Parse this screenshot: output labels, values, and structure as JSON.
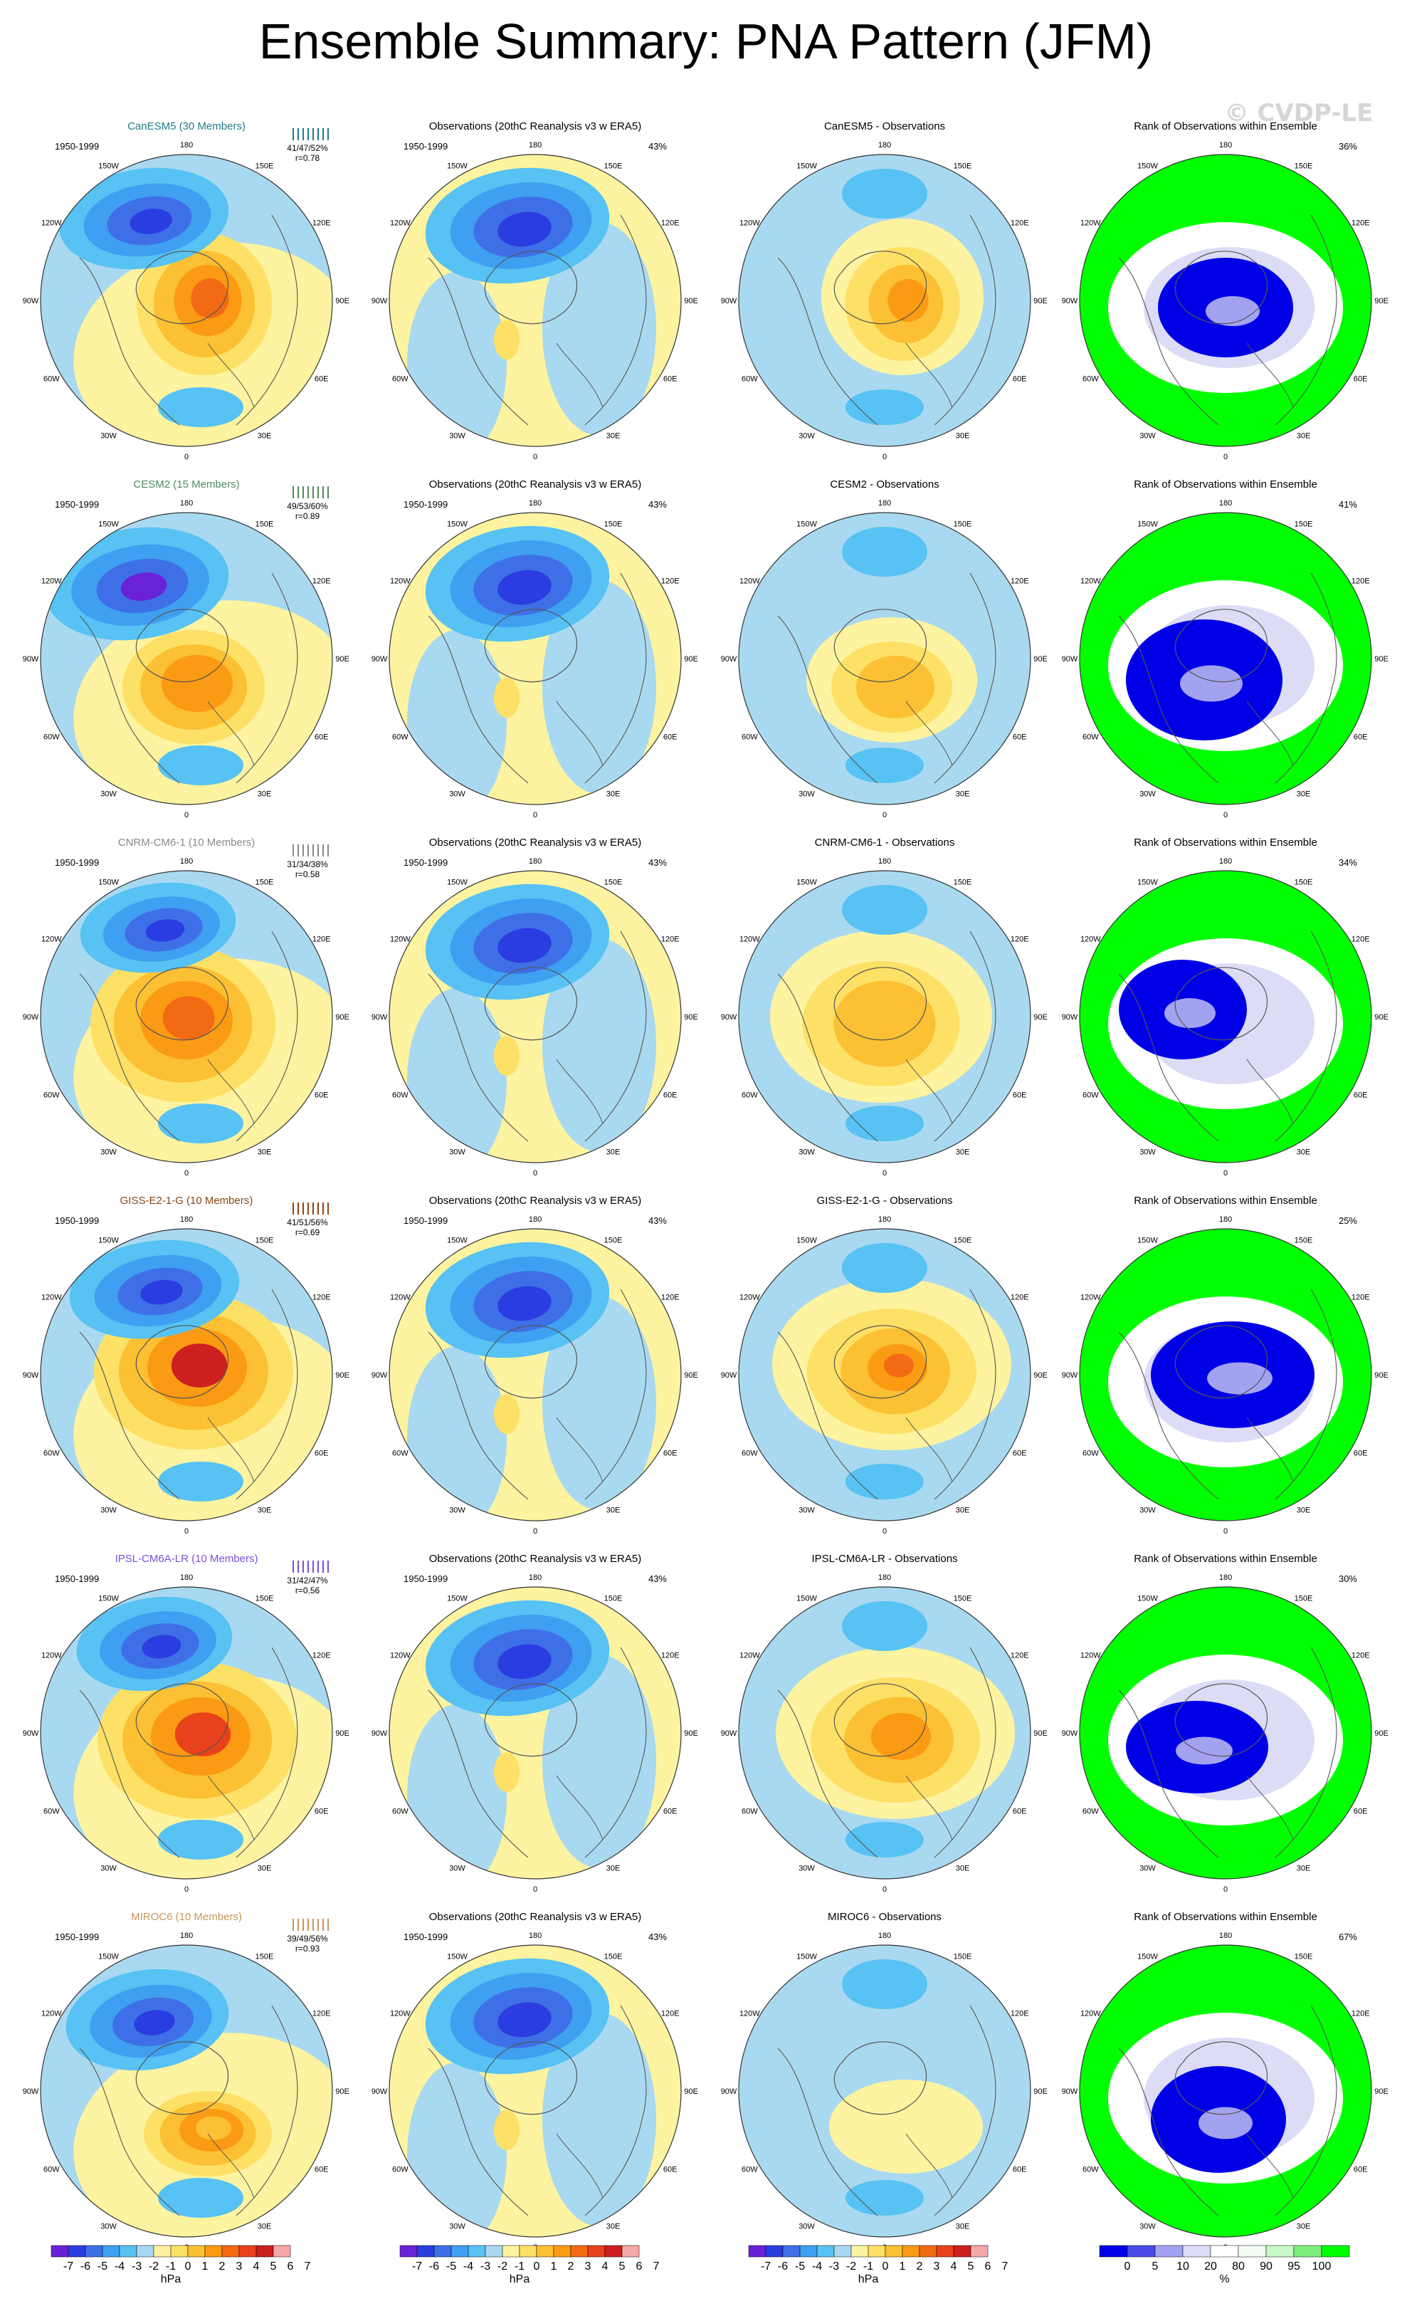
{
  "page": {
    "title": "Ensemble Summary: PNA Pattern (JFM)",
    "watermark": "© CVDP-LE"
  },
  "longitude_labels": [
    "180",
    "150E",
    "120E",
    "90E",
    "60E",
    "30E",
    "0",
    "30W",
    "60W",
    "90W",
    "120W",
    "150W"
  ],
  "colors": {
    "contour_levels": [
      "#6a22d6",
      "#2a3de0",
      "#3f6fe6",
      "#3f9ff0",
      "#57c2f3",
      "#a9d9f0",
      "#fdf3a0",
      "#fde066",
      "#fbc033",
      "#fb9a13",
      "#f36a14",
      "#e8421c",
      "#cc1f1f",
      "#f6a7a7"
    ],
    "rank_levels": [
      "#0000e6",
      "#4a4ae8",
      "#a2a2f0",
      "#dcdcf6",
      "#ffffff",
      "#f2fcf2",
      "#c8f7c8",
      "#7ded7d",
      "#00ff00"
    ],
    "map_border": "#333333"
  },
  "rows": [
    {
      "model": "CanESM5 (30 Members)",
      "model_color": "#1f7a8c",
      "period": "1950-1999",
      "stats": "41/47/52%",
      "r": "r=0.78",
      "obs_title": "Observations (20thC Reanalysis v3 w ERA5)",
      "obs_period": "1950-1999",
      "obs_pct": "43%",
      "diff_title": "CanESM5 - Observations",
      "rank_title": "Rank of Observations within Ensemble",
      "rank_pct": "36%"
    },
    {
      "model": "CESM2 (15 Members)",
      "model_color": "#4f8a5b",
      "period": "1950-1999",
      "stats": "49/53/60%",
      "r": "r=0.89",
      "obs_title": "Observations (20thC Reanalysis v3 w ERA5)",
      "obs_period": "1950-1999",
      "obs_pct": "43%",
      "diff_title": "CESM2 - Observations",
      "rank_title": "Rank of Observations within Ensemble",
      "rank_pct": "41%"
    },
    {
      "model": "CNRM-CM6-1 (10 Members)",
      "model_color": "#8a8a8a",
      "period": "1950-1999",
      "stats": "31/34/38%",
      "r": "r=0.58",
      "obs_title": "Observations (20thC Reanalysis v3 w ERA5)",
      "obs_period": "1950-1999",
      "obs_pct": "43%",
      "diff_title": "CNRM-CM6-1 - Observations",
      "rank_title": "Rank of Observations within Ensemble",
      "rank_pct": "34%"
    },
    {
      "model": "GISS-E2-1-G (10 Members)",
      "model_color": "#8b4513",
      "period": "1950-1999",
      "stats": "41/51/56%",
      "r": "r=0.69",
      "obs_title": "Observations (20thC Reanalysis v3 w ERA5)",
      "obs_period": "1950-1999",
      "obs_pct": "43%",
      "diff_title": "GISS-E2-1-G - Observations",
      "rank_title": "Rank of Observations within Ensemble",
      "rank_pct": "25%"
    },
    {
      "model": "IPSL-CM6A-LR (10 Members)",
      "model_color": "#7b4fd8",
      "period": "1950-1999",
      "stats": "31/42/47%",
      "r": "r=0.56",
      "obs_title": "Observations (20thC Reanalysis v3 w ERA5)",
      "obs_period": "1950-1999",
      "obs_pct": "43%",
      "diff_title": "IPSL-CM6A-LR - Observations",
      "rank_title": "Rank of Observations within Ensemble",
      "rank_pct": "30%"
    },
    {
      "model": "MIROC6 (10 Members)",
      "model_color": "#c8965a",
      "period": "1950-1999",
      "stats": "39/49/56%",
      "r": "r=0.93",
      "obs_title": "Observations (20thC Reanalysis v3 w ERA5)",
      "obs_period": "1950-1999",
      "obs_pct": "43%",
      "diff_title": "MIROC6 - Observations",
      "rank_title": "Rank of Observations within Ensemble",
      "rank_pct": "67%"
    }
  ],
  "legends": {
    "hpa": {
      "labels": [
        "-7",
        "-6",
        "-5",
        "-4",
        "-3",
        "-2",
        "-1",
        "0",
        "1",
        "2",
        "3",
        "4",
        "5",
        "6",
        "7"
      ],
      "units": "hPa"
    },
    "rank": {
      "labels": [
        "0",
        "5",
        "10",
        "20",
        "80",
        "90",
        "95",
        "100"
      ],
      "units": "%"
    }
  }
}
